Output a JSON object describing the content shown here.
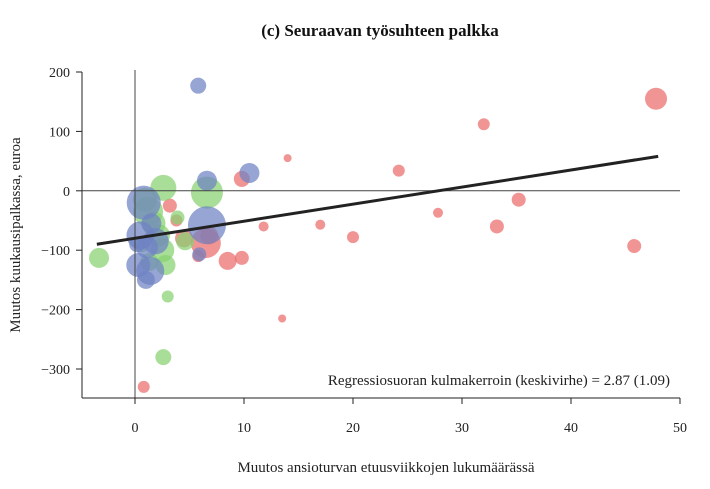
{
  "chart_data": {
    "type": "scatter",
    "title": "(c) Seuraavan työsuhteen palkka",
    "xlabel": "Muutos ansioturvan etuusviikkojen lukumäärässä",
    "ylabel": "Muutos kuukausipalkassa, euroa",
    "xlim": [
      -5,
      50
    ],
    "ylim": [
      -350,
      200
    ],
    "xticks": [
      0,
      10,
      20,
      30,
      40,
      50
    ],
    "xtick_labels": [
      "0",
      "10",
      "20",
      "30",
      "40",
      "50"
    ],
    "yticks": [
      200,
      100,
      0,
      -100,
      -200,
      -300
    ],
    "ytick_labels": [
      "200",
      "100",
      "0",
      "−100",
      "−200",
      "−300"
    ],
    "grid": false,
    "reference_lines": {
      "x": 0,
      "y": 0
    },
    "annotation": "Regressiosuoran kulmakerroin (keskivirhe) = 2.87 (1.09)",
    "regression": {
      "x": [
        -3.5,
        48
      ],
      "y": [
        -90,
        58
      ],
      "color": "#222222"
    },
    "colors": {
      "red": "#ec6b6b",
      "green": "#86d170",
      "blue": "#6f82c4"
    },
    "series": [
      {
        "color_key": "red",
        "points": [
          {
            "x": 47.8,
            "y": 155,
            "s": 11
          },
          {
            "x": 32.0,
            "y": 112,
            "s": 6
          },
          {
            "x": 24.2,
            "y": 34,
            "s": 6
          },
          {
            "x": 14.0,
            "y": 55,
            "s": 4
          },
          {
            "x": 9.8,
            "y": 20,
            "s": 8
          },
          {
            "x": 11.8,
            "y": -60,
            "s": 5
          },
          {
            "x": 17.0,
            "y": -57,
            "s": 5
          },
          {
            "x": 20.0,
            "y": -78,
            "s": 6
          },
          {
            "x": 27.8,
            "y": -37,
            "s": 5
          },
          {
            "x": 33.2,
            "y": -60,
            "s": 7
          },
          {
            "x": 35.2,
            "y": -15,
            "s": 7
          },
          {
            "x": 45.8,
            "y": -93,
            "s": 7
          },
          {
            "x": 13.5,
            "y": -215,
            "s": 4
          },
          {
            "x": 0.8,
            "y": -330,
            "s": 6
          },
          {
            "x": 8.5,
            "y": -118,
            "s": 9
          },
          {
            "x": 9.8,
            "y": -113,
            "s": 7
          },
          {
            "x": 6.5,
            "y": -88,
            "s": 15
          },
          {
            "x": 6.8,
            "y": -75,
            "s": 9
          },
          {
            "x": 5.8,
            "y": -110,
            "s": 6
          },
          {
            "x": 3.2,
            "y": -25,
            "s": 7
          },
          {
            "x": 3.8,
            "y": -50,
            "s": 6
          },
          {
            "x": 4.5,
            "y": -80,
            "s": 9
          }
        ]
      },
      {
        "color_key": "green",
        "points": [
          {
            "x": -3.3,
            "y": -113,
            "s": 10
          },
          {
            "x": 2.6,
            "y": 5,
            "s": 13
          },
          {
            "x": 6.6,
            "y": -3,
            "s": 16
          },
          {
            "x": 0.9,
            "y": -15,
            "s": 12
          },
          {
            "x": 1.2,
            "y": -35,
            "s": 15
          },
          {
            "x": 1.7,
            "y": -55,
            "s": 12
          },
          {
            "x": 2.2,
            "y": -75,
            "s": 11
          },
          {
            "x": 2.5,
            "y": -100,
            "s": 12
          },
          {
            "x": 2.8,
            "y": -125,
            "s": 10
          },
          {
            "x": 1.3,
            "y": -120,
            "s": 9
          },
          {
            "x": 3.0,
            "y": -178,
            "s": 6
          },
          {
            "x": 2.6,
            "y": -280,
            "s": 8
          },
          {
            "x": 3.9,
            "y": -45,
            "s": 7
          },
          {
            "x": 4.6,
            "y": -85,
            "s": 9
          },
          {
            "x": 0.6,
            "y": -90,
            "s": 8
          }
        ]
      },
      {
        "color_key": "blue",
        "points": [
          {
            "x": 5.8,
            "y": 177,
            "s": 8
          },
          {
            "x": 6.6,
            "y": 17,
            "s": 10
          },
          {
            "x": 10.5,
            "y": 30,
            "s": 10
          },
          {
            "x": 0.8,
            "y": -20,
            "s": 17
          },
          {
            "x": 0.5,
            "y": -75,
            "s": 14
          },
          {
            "x": 1.1,
            "y": -95,
            "s": 11
          },
          {
            "x": 1.5,
            "y": -55,
            "s": 10
          },
          {
            "x": 1.9,
            "y": -85,
            "s": 13
          },
          {
            "x": 0.3,
            "y": -125,
            "s": 12
          },
          {
            "x": 1.4,
            "y": -135,
            "s": 14
          },
          {
            "x": 1.0,
            "y": -150,
            "s": 9
          },
          {
            "x": 6.6,
            "y": -58,
            "s": 19
          },
          {
            "x": 5.9,
            "y": -107,
            "s": 7
          },
          {
            "x": 0.2,
            "y": -90,
            "s": 8
          }
        ]
      }
    ]
  }
}
